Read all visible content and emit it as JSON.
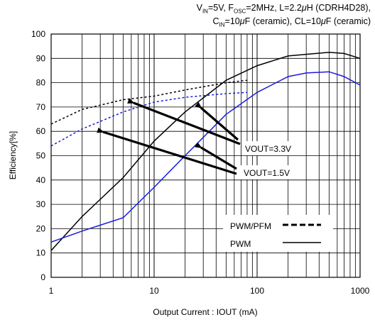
{
  "conditions": {
    "line1": "Vᴵₙ=5V, Fₒₛᶜ=2MHz, L=2.2μH (CDRH4D28),",
    "line1_parts": [
      "V",
      "IN",
      "=5V, F",
      "OSC",
      "=2MHz, L=2.2",
      "μ",
      "H (CDRH4D28),"
    ],
    "line2_parts": [
      "C",
      "IN",
      "=10",
      "μ",
      "F (ceramic), CL=10",
      "μ",
      "F (ceramic)"
    ]
  },
  "annotations": {
    "vout_33": "VOUT=3.3V",
    "vout_15": "VOUT=1.5V"
  },
  "legend": {
    "pwm_pfm": "PWM/PFM",
    "pwm": "PWM"
  },
  "colors": {
    "vout33": "#000000",
    "vout15": "#1a1adc",
    "grid": "#000000"
  },
  "chart_data": {
    "type": "line",
    "title": "",
    "xlabel": "Output Current : IOUT (mA)",
    "ylabel": "Efficiency[%]",
    "xscale": "log",
    "xlim": [
      1,
      1000
    ],
    "ylim": [
      0,
      100
    ],
    "x_ticks": [
      "1",
      "10",
      "100",
      "1000"
    ],
    "y_ticks": [
      "0",
      "10",
      "20",
      "30",
      "40",
      "50",
      "60",
      "70",
      "80",
      "90",
      "100"
    ],
    "grid": true,
    "series": [
      {
        "name": "VOUT=3.3V",
        "mode": "PWM/PFM",
        "style": "dashed",
        "x": [
          1,
          2,
          5,
          10,
          20,
          50,
          80
        ],
        "y": [
          63,
          69,
          73,
          74.5,
          77,
          80,
          81
        ]
      },
      {
        "name": "VOUT=3.3V",
        "mode": "PWM",
        "style": "solid",
        "x": [
          1,
          2,
          5,
          10,
          20,
          50,
          100,
          200,
          500,
          700,
          1000
        ],
        "y": [
          11,
          25,
          41,
          56,
          68,
          81,
          87,
          91,
          92.5,
          92,
          90
        ]
      },
      {
        "name": "VOUT=1.5V",
        "mode": "PWM/PFM",
        "style": "dashed",
        "x": [
          1,
          2,
          5,
          10,
          20,
          50,
          80
        ],
        "y": [
          54,
          61,
          68,
          72,
          74,
          75.5,
          76
        ]
      },
      {
        "name": "VOUT=1.5V",
        "mode": "PWM",
        "style": "solid",
        "x": [
          1,
          2,
          5,
          10,
          20,
          50,
          100,
          200,
          300,
          500,
          700,
          1000
        ],
        "y": [
          14.5,
          19,
          24.5,
          37,
          50,
          67,
          76,
          82.5,
          84,
          84.5,
          82.5,
          79
        ]
      }
    ]
  }
}
